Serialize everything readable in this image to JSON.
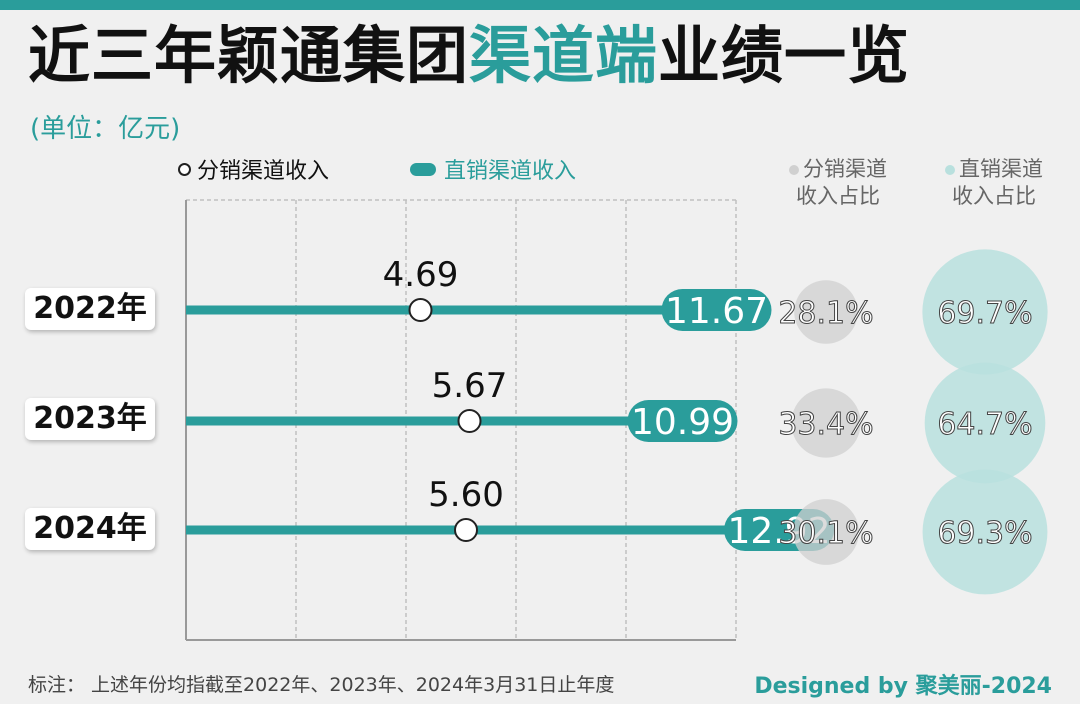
{
  "header": {
    "title_part1": "近三年颖通集团",
    "title_highlight": "渠道端",
    "title_part2": "业绩一览",
    "unit": "(单位：亿元)"
  },
  "legend": {
    "distribution": "分销渠道收入",
    "direct": "直销渠道收入"
  },
  "share_headers": {
    "distribution": [
      "分销渠道",
      "收入占比"
    ],
    "direct": [
      "直销渠道",
      "收入占比"
    ]
  },
  "years": [
    "2022年",
    "2023年",
    "2024年"
  ],
  "colors": {
    "accent": "#2a9d9b",
    "accent_light": "#b9e0de",
    "dist_circle": "#d0d0d0",
    "grid": "#bfbfbf",
    "axis": "#999999"
  },
  "chart_data": {
    "type": "bar",
    "categories": [
      "2022年",
      "2023年",
      "2024年"
    ],
    "series": [
      {
        "name": "分销渠道收入",
        "values": [
          4.69,
          5.67,
          5.6
        ],
        "labels": [
          "4.69",
          "5.67",
          "5.60"
        ]
      },
      {
        "name": "直销渠道收入",
        "values": [
          11.67,
          10.99,
          12.92
        ],
        "labels": [
          "11.67",
          "10.99",
          "12.92"
        ]
      }
    ],
    "shares": {
      "distribution": {
        "values": [
          28.1,
          33.4,
          30.1
        ],
        "labels": [
          "28.1%",
          "33.4%",
          "30.1%"
        ]
      },
      "direct": {
        "values": [
          69.7,
          64.7,
          69.3
        ],
        "labels": [
          "69.7%",
          "64.7%",
          "69.3%"
        ]
      }
    },
    "xlim": [
      0,
      15
    ],
    "grid": true
  },
  "footnote": "标注：  上述年份均指截至2022年、2023年、2024年3月31日止年度",
  "credit": "Designed by 聚美丽-2024"
}
